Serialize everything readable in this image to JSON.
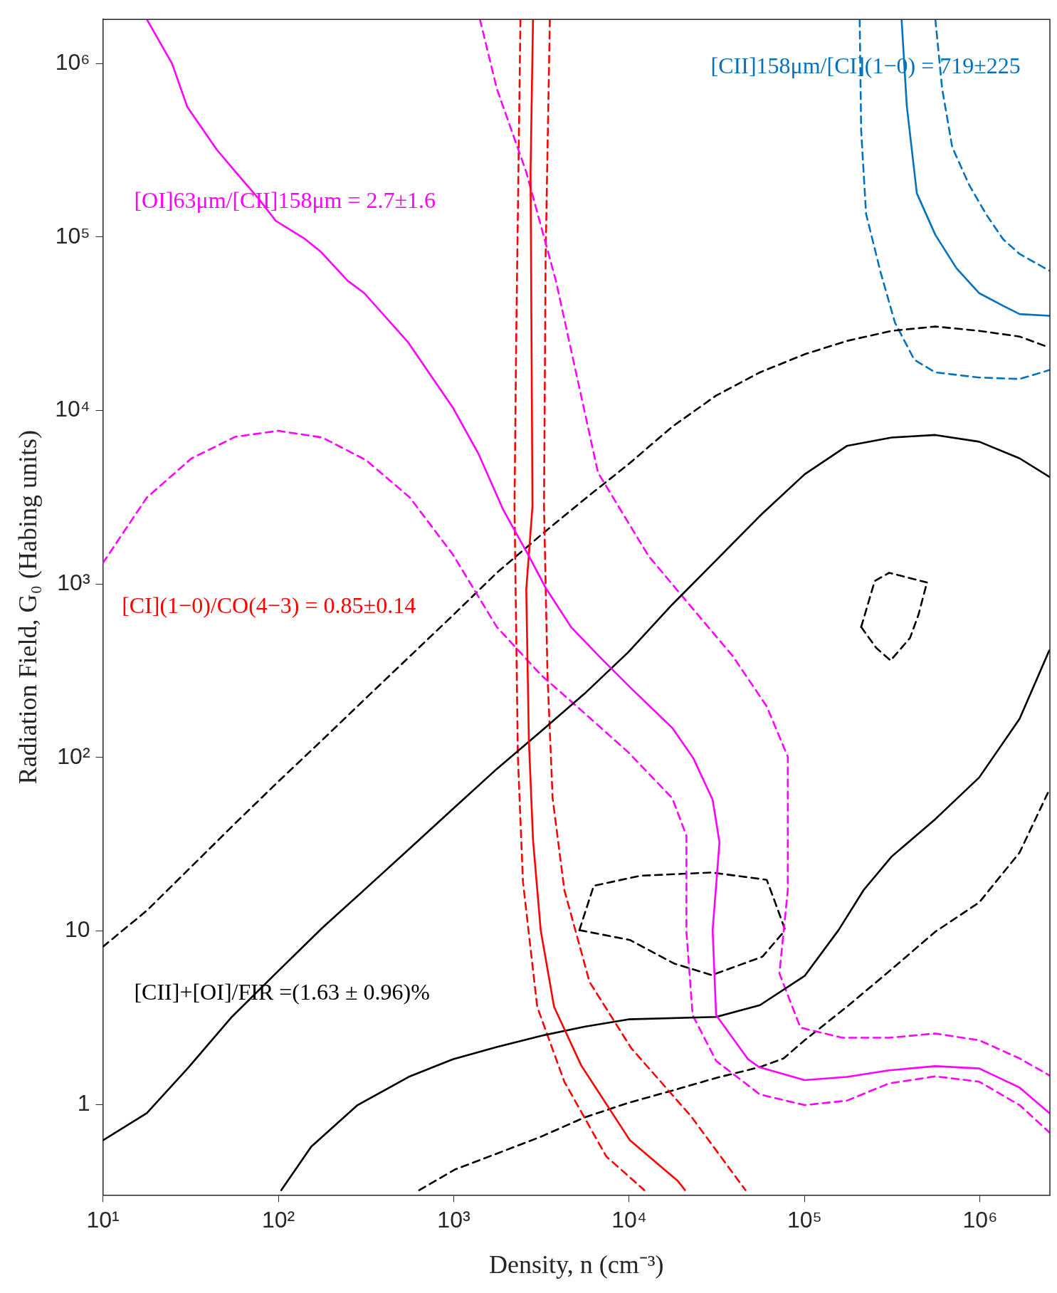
{
  "chart_data": {
    "type": "line",
    "xlabel": "Density, n (cm⁻³)",
    "ylabel": "Radiation Field, G₀ (Habing units)",
    "xlim": [
      10,
      2500000
    ],
    "ylim": [
      0.32,
      1800000
    ],
    "log": "xy",
    "grid": false,
    "legend": false,
    "marker": "none",
    "xticks": [
      {
        "value": 10,
        "label": "10¹"
      },
      {
        "value": 100,
        "label": "10²"
      },
      {
        "value": 1000,
        "label": "10³"
      },
      {
        "value": 10000,
        "label": "10⁴"
      },
      {
        "value": 100000,
        "label": "10⁵"
      },
      {
        "value": 1000000,
        "label": "10⁶"
      }
    ],
    "yticks": [
      1,
      10,
      {
        "value": 100,
        "label": "10²"
      },
      {
        "value": 1000,
        "label": "10³"
      },
      {
        "value": 10000,
        "label": "10⁴"
      },
      {
        "value": 100000,
        "label": "10⁵"
      },
      {
        "value": 1000000,
        "label": "10⁶"
      }
    ],
    "series": [
      {
        "color": "#ff00ff",
        "line_style": "solid",
        "x": [
          17.8,
          24.8,
          30.3,
          44.6,
          55.6,
          77.4,
          96.8,
          142,
          174,
          248,
          309,
          550,
          988,
          1380,
          1920,
          2680,
          3340,
          4660,
          6870,
          10100,
          17600,
          23200,
          29900,
          32700,
          29900,
          31300,
          47600,
          55000,
          100000,
          174000,
          303000,
          556000,
          989000,
          1680000,
          2480000
        ],
        "values": [
          1800000,
          1000000,
          562000,
          319000,
          245000,
          166000,
          124000,
          97500,
          82600,
          56100,
          47500,
          24700,
          10400,
          5660,
          2660,
          1450,
          951,
          565,
          375,
          254,
          148,
          99,
          57,
          32.4,
          10.1,
          3.27,
          1.82,
          1.64,
          1.38,
          1.44,
          1.57,
          1.66,
          1.61,
          1.25,
          0.89
        ]
      },
      {
        "color": "#ff0000",
        "line_style": "solid",
        "x": [
          2830,
          2740,
          2810,
          2590,
          2680,
          2830,
          3130,
          3730,
          5320,
          10100,
          19000,
          20800
        ],
        "values": [
          1800000,
          237000,
          2810,
          929,
          126,
          33.5,
          10.1,
          3.65,
          1.68,
          0.62,
          0.36,
          0.32
        ]
      },
      {
        "color": "#0072bd",
        "line_style": "solid",
        "x": [
          357000,
          382000,
          436000,
          556000,
          733000,
          989000,
          1350000,
          1680000,
          2480000
        ],
        "values": [
          1800000,
          574000,
          179000,
          103000,
          66200,
          47500,
          40200,
          36000,
          35200
        ]
      },
      {
        "color": "#000000",
        "line_style": "solid",
        "x": [
          10,
          17.8,
          30.9,
          53.8,
          100,
          178,
          316,
          562,
          1000,
          1760,
          3130,
          5560,
          9890,
          17600,
          31300,
          55600,
          100000,
          174000,
          313000,
          556000,
          989000,
          1680000,
          2480000
        ],
        "values": [
          0.62,
          0.89,
          1.64,
          3.16,
          5.88,
          10.4,
          17.6,
          29.9,
          51,
          85.9,
          141,
          233,
          405,
          762,
          1370,
          2470,
          4290,
          6250,
          6990,
          7230,
          6610,
          5300,
          4150
        ]
      },
      {
        "color": "#000000",
        "line_style": "solid",
        "x": [
          104,
          154,
          283,
          562,
          988,
          1760,
          3130,
          5560,
          9890,
          31300,
          55600,
          100000,
          156000,
          217000,
          313000,
          556000,
          989000,
          1680000,
          2480000
        ],
        "values": [
          0.32,
          0.57,
          0.99,
          1.45,
          1.82,
          2.14,
          2.48,
          2.8,
          3.09,
          3.19,
          3.73,
          5.5,
          10.1,
          17.2,
          26.8,
          44.1,
          76.7,
          167,
          414
        ]
      },
      {
        "color": "#ff00ff",
        "line_style": "dashed",
        "x": [
          10,
          17.8,
          32,
          56.9,
          100,
          178,
          316,
          562,
          988,
          1760,
          3130,
          5560,
          9890,
          17600,
          21200,
          21200,
          23000,
          31300,
          55600,
          100000,
          174000,
          303000,
          556000,
          989000,
          1680000,
          2480000
        ],
        "values": [
          1320,
          3150,
          5300,
          7060,
          7640,
          6990,
          5180,
          3150,
          1480,
          565,
          300,
          180,
          107,
          58.2,
          35.4,
          9.89,
          3.27,
          1.78,
          1.14,
          0.99,
          1.05,
          1.32,
          1.45,
          1.35,
          0.99,
          0.69
        ]
      },
      {
        "color": "#ff00ff",
        "line_style": "dashed",
        "x": [
          1410,
          1760,
          2590,
          3820,
          6640,
          12900,
          22400,
          39000,
          60800,
          80200,
          80200,
          71800,
          94600,
          164000,
          303000,
          556000,
          989000,
          1680000,
          2480000
        ],
        "values": [
          1800000,
          717000,
          237000,
          56100,
          4380,
          1450,
          745,
          383,
          197,
          101,
          17.2,
          5.69,
          2.77,
          2.42,
          2.42,
          2.56,
          2.34,
          1.84,
          1.47
        ]
      },
      {
        "color": "#ff0000",
        "line_style": "dashed",
        "x": [
          2400,
          2270,
          2220,
          2320,
          2480,
          2990,
          4270,
          7410,
          12200
        ],
        "values": [
          1800000,
          25800,
          2810,
          101,
          19.2,
          3.65,
          1.35,
          0.5,
          0.32
        ]
      },
      {
        "color": "#ff0000",
        "line_style": "dashed",
        "x": [
          3530,
          3340,
          3270,
          3420,
          3660,
          4270,
          5940,
          10300,
          22400,
          46000
        ],
        "values": [
          1800000,
          78200,
          2810,
          307,
          58.2,
          17.2,
          5.08,
          2.1,
          0.86,
          0.32
        ]
      },
      {
        "color": "#000000",
        "line_style": "dashed",
        "x": [
          10,
          17.8,
          30.9,
          56.9,
          100,
          178,
          316,
          562,
          1000,
          1760,
          3130,
          5560,
          9890,
          17600,
          31300,
          55600,
          100000,
          174000,
          313000,
          556000,
          989000,
          1680000,
          2480000
        ],
        "values": [
          8.1,
          13.1,
          22.7,
          41.8,
          72.6,
          126,
          220,
          383,
          667,
          1160,
          1910,
          3080,
          4900,
          8070,
          12200,
          16600,
          21100,
          25200,
          28800,
          30500,
          28800,
          26700,
          23100
        ]
      },
      {
        "color": "#000000",
        "line_style": "dashed",
        "x": [
          635,
          1010,
          1760,
          3130,
          5560,
          9890,
          17600,
          31300,
          55600,
          75900,
          100000,
          174000,
          313000,
          556000,
          989000,
          1680000,
          2480000
        ],
        "values": [
          0.32,
          0.42,
          0.52,
          0.65,
          0.84,
          1.02,
          1.2,
          1.42,
          1.64,
          1.84,
          2.34,
          3.65,
          6.01,
          9.89,
          14.6,
          28.3,
          65
        ]
      },
      {
        "color": "#000000",
        "line_style": "dashed",
        "x": [
          5200,
          6280,
          11600,
          29600,
          60800,
          67900,
          77500
        ],
        "values": [
          10.1,
          18.2,
          20.8,
          21.7,
          19.7,
          14.6,
          10.1
        ]
      },
      {
        "color": "#000000",
        "line_style": "dashed",
        "x": [
          5200,
          10100,
          18000,
          29600,
          57500,
          77500
        ],
        "values": [
          10.1,
          8.86,
          6.49,
          5.56,
          7.1,
          10.1
        ]
      },
      {
        "color": "#000000",
        "line_style": "dashed",
        "x": [
          210000,
          251000,
          303000,
          498000
        ],
        "values": [
          565,
          1040,
          1160,
          1020
        ]
      },
      {
        "color": "#000000",
        "line_style": "dashed",
        "x": [
          210000,
          256000,
          309000,
          399000,
          446000,
          498000
        ],
        "values": [
          565,
          428,
          362,
          489,
          667,
          1020
        ]
      },
      {
        "color": "#0072bd",
        "line_style": "dashed",
        "x": [
          206000,
          210000,
          224000,
          271000,
          327000,
          422000,
          556000,
          989000,
          1680000,
          2480000
        ],
        "values": [
          1800000,
          412000,
          136000,
          62700,
          32200,
          19600,
          16600,
          15500,
          15200,
          17100
        ]
      },
      {
        "color": "#0072bd",
        "line_style": "dashed",
        "x": [
          556000,
          608000,
          694000,
          866000,
          1080000,
          1350000,
          1680000,
          2480000
        ],
        "values": [
          1800000,
          717000,
          330000,
          200000,
          136000,
          97500,
          79900,
          64100
        ]
      }
    ],
    "annotations": [
      "[OI]63μm/[CII]158μm = 2.7±1.6",
      "[CI](1−0)/CO(4−3) = 0.85±0.14",
      "[CII]158μm/[CI](1−0) = 719±225",
      "[CII]+[OI]/FIR =(1.63 ± 0.96)%"
    ]
  }
}
